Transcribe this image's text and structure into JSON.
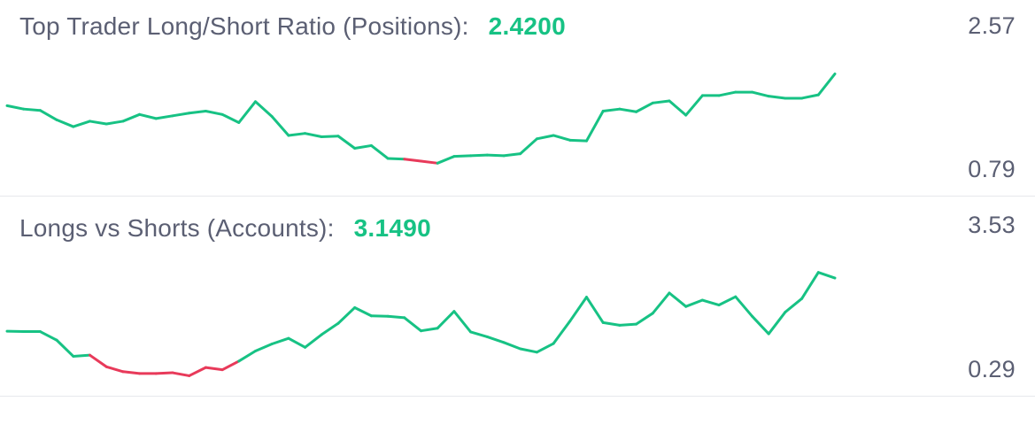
{
  "colors": {
    "up": "#17c284",
    "down": "#e83a5a",
    "label": "#5b5f73",
    "divider": "#e6e8ec"
  },
  "chart_data": [
    {
      "type": "line",
      "title": "Top Trader Long/Short Ratio (Positions):",
      "current_value": "2.4200",
      "axis_max_label": "2.57",
      "axis_min_label": "0.79",
      "ylim": [
        0.79,
        2.57
      ],
      "values": [
        1.95,
        1.9,
        1.88,
        1.74,
        1.64,
        1.72,
        1.68,
        1.72,
        1.82,
        1.76,
        1.8,
        1.84,
        1.87,
        1.82,
        1.7,
        2.01,
        1.79,
        1.51,
        1.54,
        1.49,
        1.5,
        1.32,
        1.36,
        1.17,
        1.16,
        1.13,
        1.1,
        1.2,
        1.21,
        1.22,
        1.21,
        1.24,
        1.46,
        1.51,
        1.44,
        1.43,
        1.87,
        1.9,
        1.86,
        1.99,
        2.02,
        1.81,
        2.1,
        2.1,
        2.15,
        2.15,
        2.09,
        2.06,
        2.06,
        2.11,
        2.42
      ],
      "negative_segments": [
        [
          24,
          26
        ]
      ]
    },
    {
      "type": "line",
      "title": "Longs vs Shorts (Accounts):",
      "current_value": "3.1490",
      "axis_max_label": "3.53",
      "axis_min_label": "0.29",
      "ylim": [
        0.29,
        3.53
      ],
      "values": [
        1.73,
        1.72,
        1.72,
        1.49,
        1.06,
        1.09,
        0.78,
        0.65,
        0.6,
        0.6,
        0.62,
        0.54,
        0.76,
        0.7,
        0.93,
        1.2,
        1.39,
        1.54,
        1.3,
        1.64,
        1.94,
        2.36,
        2.14,
        2.13,
        2.09,
        1.74,
        1.81,
        2.26,
        1.71,
        1.58,
        1.43,
        1.26,
        1.17,
        1.4,
        2.0,
        2.64,
        1.96,
        1.89,
        1.92,
        2.21,
        2.75,
        2.39,
        2.56,
        2.43,
        2.65,
        2.13,
        1.66,
        2.24,
        2.6,
        3.3,
        3.15
      ],
      "negative_segments": [
        [
          5,
          14
        ]
      ]
    }
  ]
}
